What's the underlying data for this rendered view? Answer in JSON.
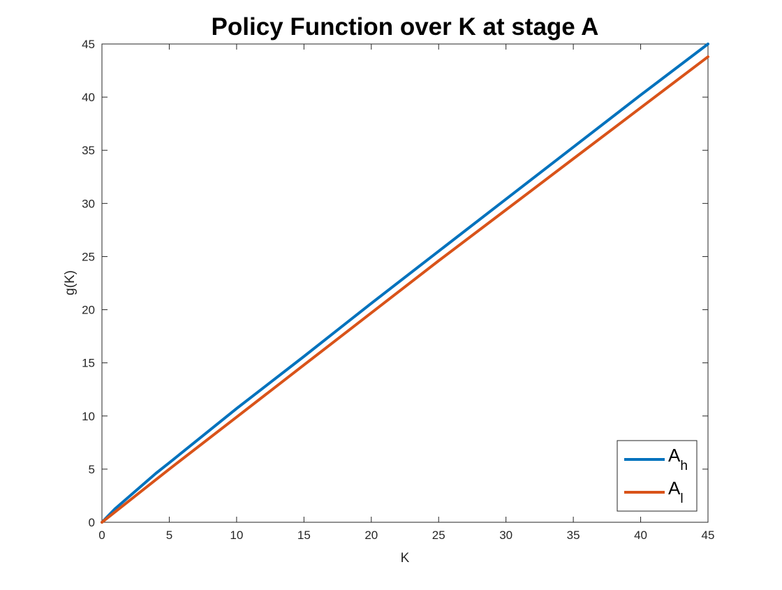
{
  "chart_data": {
    "type": "line",
    "title": "Policy Function over K at stage A",
    "xlabel": "K",
    "ylabel": "g(K)",
    "xlim": [
      0,
      45
    ],
    "ylim": [
      0,
      45
    ],
    "xticks": [
      0,
      5,
      10,
      15,
      20,
      25,
      30,
      35,
      40,
      45
    ],
    "yticks": [
      0,
      5,
      10,
      15,
      20,
      25,
      30,
      35,
      40,
      45
    ],
    "grid": false,
    "legend_position": "bottom-right",
    "series": [
      {
        "name": "A_h",
        "label_base": "A",
        "label_sub": "h",
        "color": "#0072BD",
        "x": [
          0,
          1,
          2,
          3,
          4,
          5,
          10,
          15,
          20,
          25,
          30,
          35,
          40,
          45
        ],
        "y": [
          0,
          1.3,
          2.4,
          3.5,
          4.6,
          5.6,
          10.7,
          15.6,
          20.6,
          25.5,
          30.4,
          35.3,
          40.2,
          45.0
        ]
      },
      {
        "name": "A_l",
        "label_base": "A",
        "label_sub": "l",
        "color": "#D95319",
        "x": [
          0,
          1,
          2,
          3,
          4,
          5,
          10,
          15,
          20,
          25,
          30,
          35,
          40,
          45
        ],
        "y": [
          0,
          1.0,
          2.0,
          3.0,
          4.0,
          5.0,
          9.9,
          14.8,
          19.7,
          24.6,
          29.4,
          34.2,
          39.0,
          43.8
        ]
      }
    ]
  }
}
